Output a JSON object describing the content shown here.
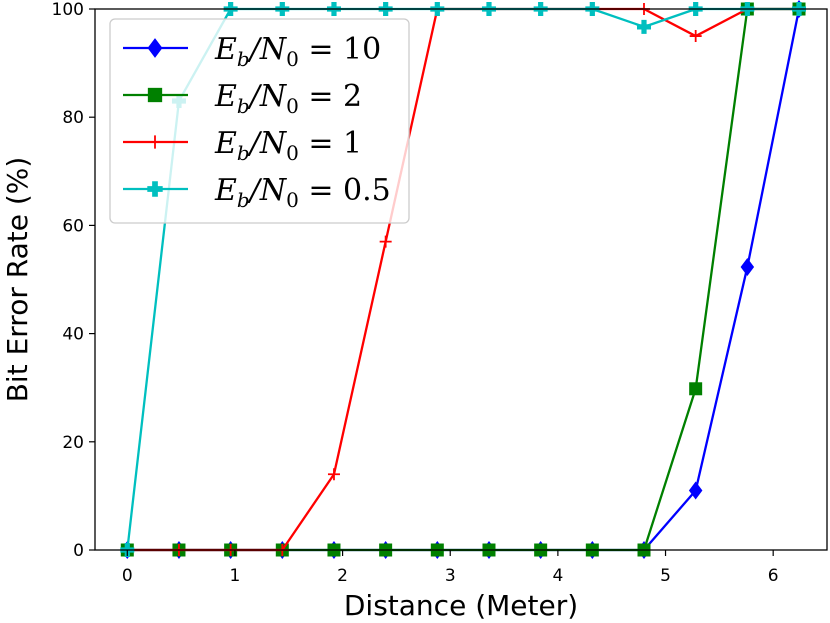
{
  "chart_data": {
    "type": "line",
    "xlabel": "Distance (Meter)",
    "ylabel": "Bit Error Rate (%)",
    "xlim": [
      -0.3,
      6.5
    ],
    "ylim": [
      0,
      100
    ],
    "xticks": [
      0,
      1,
      2,
      3,
      4,
      5,
      6
    ],
    "yticks": [
      0,
      20,
      40,
      60,
      80,
      100
    ],
    "grid": false,
    "legend_position": "top-left",
    "x": [
      0,
      0.48,
      0.96,
      1.44,
      1.92,
      2.4,
      2.88,
      3.36,
      3.84,
      4.32,
      4.8,
      5.28,
      5.76,
      6.24
    ],
    "series": [
      {
        "name": "E_b/N_0 = 10",
        "legend": {
          "base": "E",
          "sub1": "b",
          "mid": "/N",
          "sub2": "0",
          "value": " = 10"
        },
        "color": "#0000ff",
        "marker": "diamond",
        "values": [
          0,
          0,
          0,
          0,
          0,
          0,
          0,
          0,
          0,
          0,
          0,
          11,
          52.3,
          100
        ]
      },
      {
        "name": "E_b/N_0 = 2",
        "legend": {
          "base": "E",
          "sub1": "b",
          "mid": "/N",
          "sub2": "0",
          "value": " = 2"
        },
        "color": "#008000",
        "marker": "square",
        "values": [
          0,
          0,
          0,
          0,
          0,
          0,
          0,
          0,
          0,
          0,
          0,
          29.8,
          100,
          100
        ]
      },
      {
        "name": "E_b/N_0 = 1",
        "legend": {
          "base": "E",
          "sub1": "b",
          "mid": "/N",
          "sub2": "0",
          "value": " = 1"
        },
        "color": "#ff0000",
        "marker": "plus",
        "values": [
          0,
          0,
          0,
          0,
          14,
          57,
          100,
          100,
          100,
          100,
          100,
          95,
          100,
          100
        ]
      },
      {
        "name": "E_b/N_0 = 0.5",
        "legend": {
          "base": "E",
          "sub1": "b",
          "mid": "/N",
          "sub2": "0",
          "value": " = 0.5"
        },
        "color": "#00bfbf",
        "marker": "plus-filled",
        "values": [
          0,
          83,
          100,
          100,
          100,
          100,
          100,
          100,
          100,
          100,
          96.7,
          100,
          100,
          100
        ]
      }
    ]
  }
}
